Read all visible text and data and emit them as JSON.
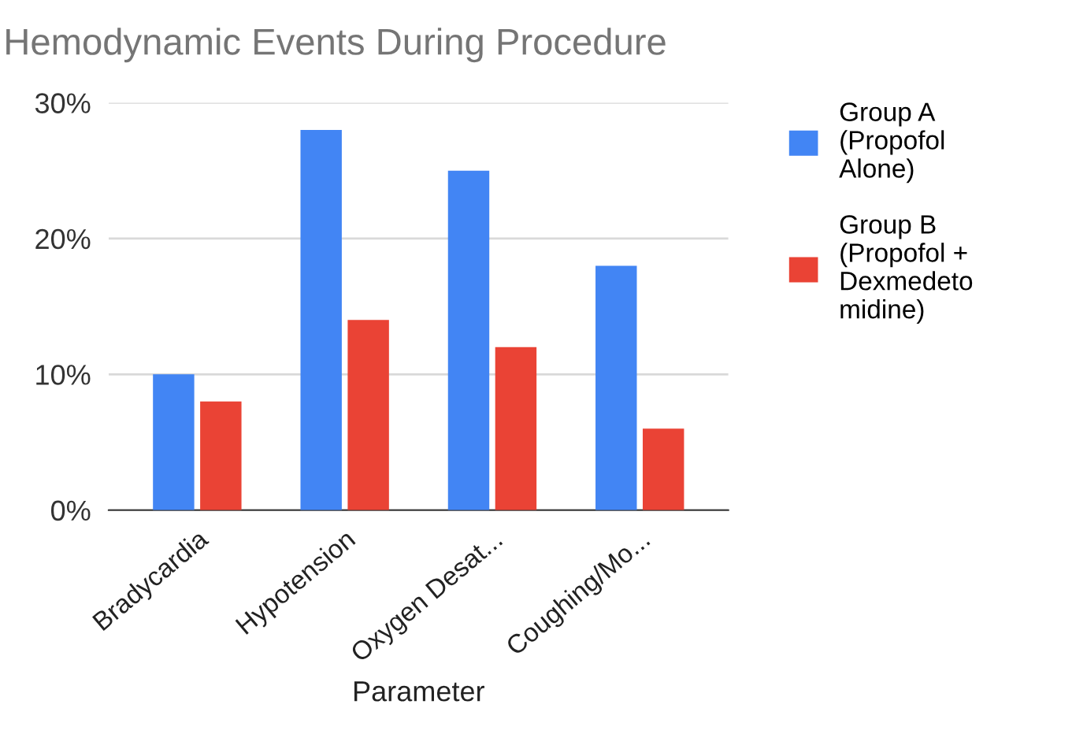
{
  "chart_data": {
    "type": "bar",
    "title": "Hemodynamic Events During Procedure",
    "xlabel": "Parameter",
    "categories": [
      "Bradycardia",
      "Hypotension",
      "Oxygen Desat...",
      "Coughing/Mo..."
    ],
    "series": [
      {
        "name": "Group A\n(Propofol\nAlone)",
        "color": "#4285f4",
        "values": [
          10,
          28,
          25,
          18
        ]
      },
      {
        "name": "Group B\n(Propofol +\nDexmedeto\nmidine)",
        "color": "#ea4335",
        "values": [
          8,
          14,
          12,
          6
        ]
      }
    ],
    "ylim": [
      0,
      30
    ],
    "yticks": [
      {
        "value": 0,
        "label": "0%"
      },
      {
        "value": 10,
        "label": "10%"
      },
      {
        "value": 20,
        "label": "20%"
      },
      {
        "value": 30,
        "label": "30%"
      }
    ],
    "grid": "y",
    "legend": "right"
  }
}
